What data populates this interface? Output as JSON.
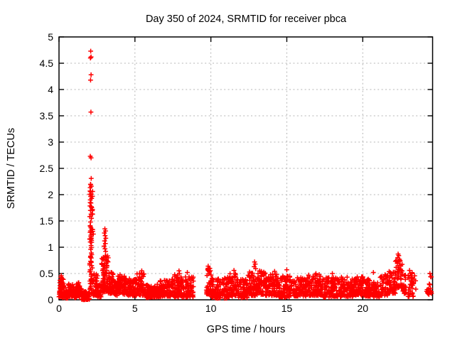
{
  "chart_data": {
    "type": "scatter",
    "title": "Day 350 of 2024, SRMTID for receiver pbca",
    "xlabel": "GPS time / hours",
    "ylabel": "SRMTID / TECUs",
    "xlim": [
      0,
      24.6
    ],
    "ylim": [
      0,
      5
    ],
    "xticks": [
      0,
      5,
      10,
      15,
      20
    ],
    "yticks": [
      0,
      0.5,
      1,
      1.5,
      2,
      2.5,
      3,
      3.5,
      4,
      4.5,
      5
    ],
    "grid": true,
    "legend": "none",
    "marker": {
      "shape": "plus",
      "color": "#ff0000",
      "size": 6.8,
      "stroke_width": 1.5
    },
    "colors": {
      "background": "#ffffff",
      "axis": "#000000",
      "grid": "#b4b4b4",
      "text": "#000000"
    },
    "seed": 1234567,
    "peak_points": [
      [
        0.15,
        0.46
      ],
      [
        0.12,
        0.43
      ],
      [
        2.09,
        4.73
      ],
      [
        2.11,
        4.62
      ],
      [
        2.07,
        4.6
      ],
      [
        2.11,
        4.28
      ],
      [
        2.08,
        4.18
      ],
      [
        2.1,
        3.57
      ],
      [
        2.06,
        2.73
      ],
      [
        2.11,
        2.7
      ],
      [
        2.12,
        2.31
      ],
      [
        2.09,
        2.19
      ],
      [
        2.07,
        2.06
      ],
      [
        2.12,
        2.01
      ],
      [
        2.09,
        1.97
      ],
      [
        2.15,
        1.93
      ],
      [
        2.06,
        1.9
      ],
      [
        2.1,
        1.84
      ],
      [
        2.13,
        1.77
      ],
      [
        2.07,
        1.7
      ],
      [
        2.11,
        1.63
      ],
      [
        2.14,
        1.55
      ],
      [
        2.08,
        1.48
      ],
      [
        2.05,
        1.41
      ],
      [
        2.1,
        1.37
      ],
      [
        2.16,
        1.34
      ],
      [
        2.07,
        1.31
      ],
      [
        2.22,
        1.3
      ],
      [
        2.12,
        1.28
      ],
      [
        2.1,
        1.23
      ],
      [
        2.26,
        1.25
      ],
      [
        2.14,
        1.17
      ],
      [
        2.06,
        1.1
      ],
      [
        2.11,
        1.03
      ],
      [
        2.09,
        0.96
      ],
      [
        2.13,
        0.89
      ],
      [
        2.07,
        0.81
      ],
      [
        2.11,
        0.73
      ],
      [
        2.15,
        0.65
      ],
      [
        2.08,
        0.57
      ],
      [
        2.12,
        0.48
      ],
      [
        2.1,
        0.39
      ],
      [
        2.06,
        0.31
      ],
      [
        3.02,
        1.35
      ],
      [
        3.06,
        1.31
      ],
      [
        2.99,
        1.27
      ],
      [
        3.04,
        1.22
      ],
      [
        3.08,
        1.17
      ],
      [
        3.0,
        1.12
      ],
      [
        3.05,
        1.07
      ],
      [
        2.97,
        1.02
      ],
      [
        3.03,
        0.97
      ],
      [
        3.07,
        0.92
      ],
      [
        5.45,
        0.55
      ],
      [
        5.42,
        0.51
      ],
      [
        7.9,
        0.55
      ],
      [
        7.93,
        0.5
      ],
      [
        8.45,
        0.52
      ],
      [
        9.82,
        0.64
      ],
      [
        9.86,
        0.6
      ],
      [
        9.79,
        0.57
      ],
      [
        9.9,
        0.53
      ],
      [
        11.52,
        0.56
      ],
      [
        12.88,
        0.72
      ],
      [
        12.92,
        0.68
      ],
      [
        12.85,
        0.63
      ],
      [
        12.95,
        0.59
      ],
      [
        13.2,
        0.55
      ],
      [
        14.2,
        0.54
      ],
      [
        15.0,
        0.57
      ],
      [
        16.92,
        0.5
      ],
      [
        18.0,
        0.5
      ],
      [
        20.7,
        0.52
      ],
      [
        22.33,
        0.87
      ],
      [
        22.37,
        0.84
      ],
      [
        22.3,
        0.8
      ],
      [
        22.42,
        0.77
      ],
      [
        22.35,
        0.73
      ],
      [
        22.28,
        0.69
      ],
      [
        22.4,
        0.65
      ],
      [
        23.08,
        0.56
      ],
      [
        23.12,
        0.5
      ],
      [
        24.42,
        0.5
      ],
      [
        24.47,
        0.44
      ],
      [
        24.38,
        0.3
      ],
      [
        24.45,
        0.22
      ]
    ],
    "noise_bands_format": [
      "x_start_hours",
      "x_end_hours",
      "y_min_tecus",
      "y_max_tecus",
      "point_count"
    ],
    "noise_bands": [
      [
        0.0,
        0.35,
        0.04,
        0.44,
        55
      ],
      [
        0.35,
        0.6,
        0.03,
        0.22,
        35
      ],
      [
        0.6,
        0.9,
        0.06,
        0.3,
        45
      ],
      [
        0.9,
        1.15,
        0.04,
        0.26,
        35
      ],
      [
        1.15,
        1.5,
        0.06,
        0.33,
        50
      ],
      [
        1.5,
        1.8,
        0.0,
        0.16,
        40
      ],
      [
        1.8,
        2.0,
        0.0,
        0.14,
        25
      ],
      [
        2.02,
        2.22,
        0.12,
        2.2,
        55
      ],
      [
        2.25,
        2.55,
        0.08,
        0.5,
        42
      ],
      [
        2.55,
        2.78,
        0.05,
        0.3,
        25
      ],
      [
        2.8,
        3.25,
        0.15,
        0.88,
        70
      ],
      [
        3.25,
        3.6,
        0.12,
        0.52,
        48
      ],
      [
        3.6,
        3.85,
        0.08,
        0.35,
        30
      ],
      [
        3.85,
        4.35,
        0.1,
        0.5,
        60
      ],
      [
        4.35,
        4.8,
        0.08,
        0.4,
        52
      ],
      [
        4.8,
        5.1,
        0.08,
        0.4,
        34
      ],
      [
        5.1,
        5.6,
        0.08,
        0.5,
        55
      ],
      [
        5.6,
        6.1,
        0.04,
        0.28,
        55
      ],
      [
        6.1,
        6.6,
        0.05,
        0.33,
        55
      ],
      [
        6.6,
        7.1,
        0.06,
        0.38,
        55
      ],
      [
        7.1,
        7.6,
        0.06,
        0.4,
        55
      ],
      [
        7.6,
        8.1,
        0.05,
        0.48,
        52
      ],
      [
        8.1,
        8.85,
        0.05,
        0.45,
        70
      ],
      [
        9.7,
        10.05,
        0.1,
        0.62,
        35
      ],
      [
        10.05,
        11.1,
        0.03,
        0.42,
        105
      ],
      [
        11.1,
        11.8,
        0.05,
        0.52,
        68
      ],
      [
        11.8,
        12.45,
        0.04,
        0.4,
        65
      ],
      [
        12.45,
        13.1,
        0.08,
        0.55,
        68
      ],
      [
        13.1,
        13.6,
        0.1,
        0.55,
        52
      ],
      [
        13.6,
        14.45,
        0.08,
        0.5,
        85
      ],
      [
        14.45,
        15.4,
        0.05,
        0.45,
        95
      ],
      [
        15.4,
        16.25,
        0.06,
        0.42,
        85
      ],
      [
        16.25,
        17.35,
        0.08,
        0.48,
        105
      ],
      [
        17.35,
        18.4,
        0.05,
        0.42,
        100
      ],
      [
        18.4,
        19.35,
        0.06,
        0.44,
        92
      ],
      [
        19.35,
        20.1,
        0.08,
        0.45,
        72
      ],
      [
        20.1,
        20.65,
        0.06,
        0.4,
        52
      ],
      [
        20.65,
        21.15,
        0.05,
        0.35,
        46
      ],
      [
        21.15,
        21.7,
        0.08,
        0.48,
        52
      ],
      [
        21.7,
        22.15,
        0.12,
        0.55,
        45
      ],
      [
        22.15,
        22.6,
        0.22,
        0.75,
        48
      ],
      [
        22.6,
        22.85,
        0.12,
        0.52,
        22
      ],
      [
        22.95,
        23.5,
        0.06,
        0.55,
        34
      ],
      [
        24.2,
        24.55,
        0.1,
        0.52,
        14
      ]
    ]
  }
}
